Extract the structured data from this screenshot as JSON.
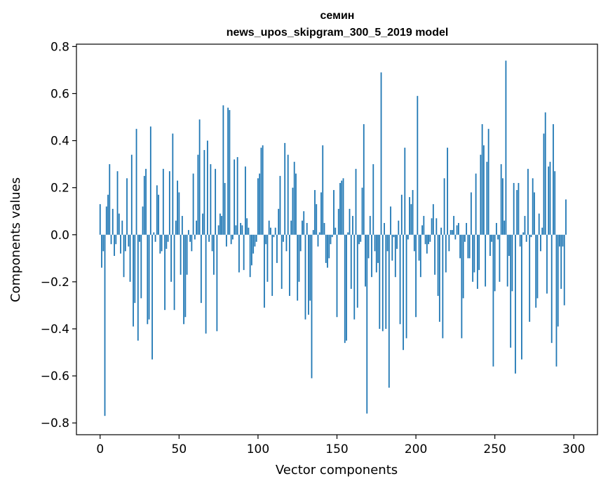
{
  "chart_data": {
    "type": "bar",
    "title": "семин",
    "subtitle": "news_upos_skipgram_300_5_2019 model",
    "xlabel": "Vector components",
    "ylabel": "Components values",
    "xlim": [
      -15,
      315
    ],
    "ylim": [
      -0.85,
      0.81
    ],
    "xticks": [
      0,
      50,
      100,
      150,
      200,
      250,
      300
    ],
    "yticks": [
      -0.8,
      -0.6,
      -0.4,
      -0.2,
      0.0,
      0.2,
      0.4,
      0.6,
      0.8
    ],
    "ytick_labels": [
      "−0.8",
      "−0.6",
      "−0.4",
      "−0.2",
      "0.0",
      "0.2",
      "0.4",
      "0.6",
      "0.8"
    ],
    "xtick_labels": [
      "0",
      "50",
      "100",
      "150",
      "200",
      "250",
      "300"
    ],
    "bar_color": "#1f77b4",
    "grid": false,
    "values": [
      0.13,
      -0.14,
      -0.07,
      -0.77,
      0.12,
      0.17,
      0.3,
      -0.04,
      0.11,
      -0.09,
      -0.04,
      0.27,
      0.09,
      -0.08,
      0.06,
      -0.18,
      -0.07,
      0.24,
      -0.05,
      -0.2,
      0.34,
      -0.39,
      -0.29,
      0.45,
      -0.45,
      -0.03,
      -0.27,
      0.12,
      0.25,
      0.28,
      -0.38,
      -0.36,
      0.46,
      -0.53,
      0.01,
      -0.03,
      0.21,
      0.17,
      -0.08,
      -0.07,
      0.28,
      -0.32,
      -0.06,
      -0.03,
      0.27,
      -0.2,
      0.43,
      -0.32,
      0.06,
      0.23,
      0.18,
      -0.17,
      0.08,
      -0.38,
      -0.35,
      -0.17,
      0.02,
      -0.03,
      -0.07,
      0.26,
      -0.02,
      0.06,
      0.34,
      0.49,
      -0.29,
      0.09,
      0.36,
      -0.42,
      0.4,
      -0.03,
      0.3,
      -0.07,
      -0.17,
      0.28,
      -0.41,
      0.04,
      0.09,
      0.08,
      0.55,
      0.22,
      -0.05,
      0.54,
      0.53,
      -0.04,
      -0.02,
      0.32,
      0.04,
      0.33,
      -0.16,
      0.05,
      0.04,
      -0.15,
      0.29,
      0.07,
      0.03,
      -0.18,
      -0.13,
      -0.08,
      -0.05,
      -0.03,
      0.24,
      0.26,
      0.37,
      0.38,
      -0.31,
      -0.04,
      -0.2,
      0.06,
      0.03,
      -0.26,
      -0.01,
      0.03,
      -0.12,
      0.11,
      0.25,
      -0.23,
      -0.03,
      0.39,
      -0.07,
      0.34,
      -0.26,
      0.06,
      0.2,
      0.31,
      0.26,
      -0.28,
      -0.2,
      -0.07,
      0.06,
      0.1,
      -0.36,
      0.05,
      -0.34,
      -0.28,
      -0.61,
      0.02,
      0.19,
      0.13,
      -0.05,
      0.01,
      0.18,
      0.38,
      0.05,
      -0.12,
      -0.14,
      -0.1,
      -0.04,
      -0.01,
      0.19,
      0.03,
      -0.35,
      0.11,
      0.22,
      0.23,
      0.24,
      -0.46,
      -0.45,
      0.01,
      0.11,
      -0.23,
      0.08,
      -0.36,
      0.28,
      -0.31,
      -0.04,
      -0.03,
      0.2,
      0.47,
      -0.22,
      -0.76,
      -0.1,
      0.08,
      -0.18,
      0.3,
      -0.07,
      -0.16,
      -0.12,
      -0.4,
      0.69,
      -0.41,
      0.05,
      -0.4,
      -0.07,
      -0.65,
      0.12,
      -0.11,
      -0.01,
      -0.18,
      -0.06,
      0.06,
      -0.38,
      0.17,
      -0.49,
      0.37,
      -0.44,
      -0.02,
      0.16,
      0.13,
      0.19,
      -0.07,
      -0.35,
      0.59,
      -0.11,
      -0.18,
      0.04,
      0.08,
      -0.04,
      -0.08,
      -0.04,
      -0.03,
      0.07,
      0.13,
      -0.17,
      0.07,
      -0.26,
      -0.37,
      0.03,
      -0.44,
      0.24,
      -0.16,
      0.37,
      -0.07,
      0.02,
      0.02,
      0.08,
      -0.02,
      0.04,
      0.05,
      -0.1,
      -0.44,
      -0.27,
      -0.03,
      0.05,
      -0.1,
      -0.1,
      0.18,
      -0.2,
      -0.16,
      0.26,
      -0.23,
      -0.15,
      0.34,
      0.47,
      0.38,
      -0.22,
      0.31,
      0.45,
      -0.09,
      -0.03,
      -0.56,
      -0.24,
      0.05,
      -0.02,
      -0.2,
      0.3,
      0.24,
      0.06,
      0.74,
      -0.22,
      -0.09,
      -0.48,
      -0.24,
      0.22,
      -0.59,
      0.19,
      0.22,
      -0.05,
      -0.53,
      0.01,
      0.08,
      -0.03,
      0.28,
      -0.37,
      -0.01,
      0.24,
      0.18,
      -0.31,
      -0.27,
      0.09,
      -0.07,
      0.03,
      0.43,
      0.52,
      -0.25,
      0.29,
      0.31,
      -0.46,
      0.47,
      0.27,
      -0.56,
      -0.39,
      -0.05,
      -0.23,
      -0.05,
      -0.3,
      0.15
    ]
  }
}
